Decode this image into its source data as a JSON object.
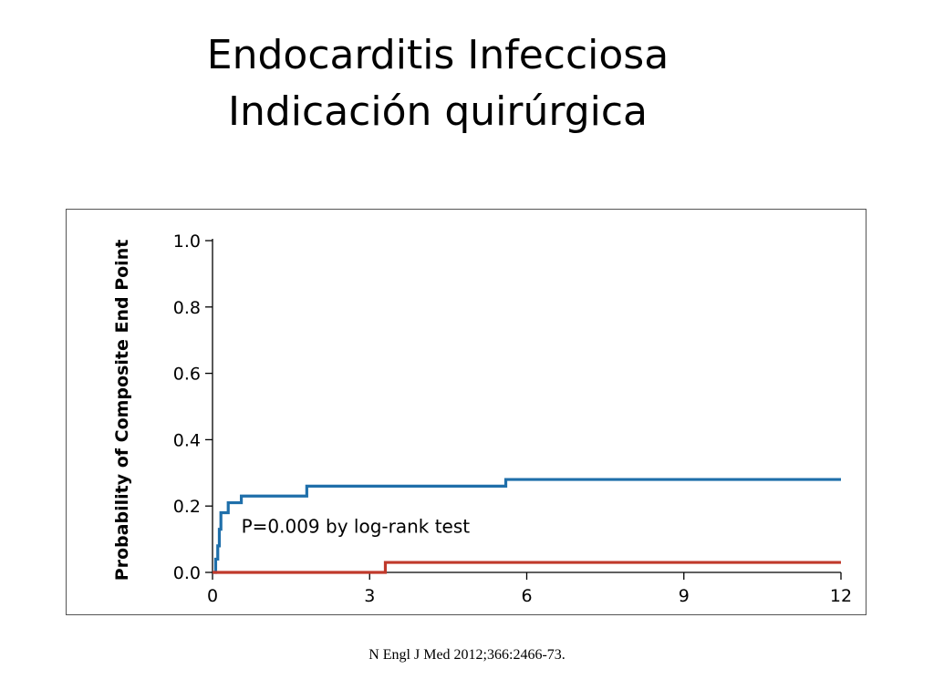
{
  "slide": {
    "title_line1": "Endocarditis Infecciosa",
    "title_line2": "Indicación quirúrgica",
    "citation": "N Engl J Med 2012;366:2466-73."
  },
  "chart_data": {
    "type": "line",
    "step": true,
    "title": "",
    "xlabel": "",
    "ylabel": "Probability of Composite End Point",
    "xlim": [
      0,
      12
    ],
    "ylim": [
      0,
      1.0
    ],
    "xticks": [
      0,
      3,
      6,
      9,
      12
    ],
    "xtick_labels": [
      "0",
      "3",
      "6",
      "9",
      "12"
    ],
    "yticks": [
      0.0,
      0.2,
      0.4,
      0.6,
      0.8,
      1.0
    ],
    "ytick_labels": [
      "0.0",
      "0.2",
      "0.4",
      "0.6",
      "0.8",
      "1.0"
    ],
    "grid": false,
    "annotation": "P=0.009 by log-rank test",
    "series": [
      {
        "color": "#1f6faa",
        "points": [
          [
            0,
            0.0
          ],
          [
            0.06,
            0.04
          ],
          [
            0.1,
            0.08
          ],
          [
            0.13,
            0.13
          ],
          [
            0.16,
            0.18
          ],
          [
            0.3,
            0.21
          ],
          [
            0.55,
            0.23
          ],
          [
            1.8,
            0.26
          ],
          [
            5.6,
            0.28
          ],
          [
            12,
            0.28
          ]
        ]
      },
      {
        "color": "#c0392b",
        "points": [
          [
            0,
            0.0
          ],
          [
            3.3,
            0.03
          ],
          [
            12,
            0.03
          ]
        ]
      }
    ]
  }
}
